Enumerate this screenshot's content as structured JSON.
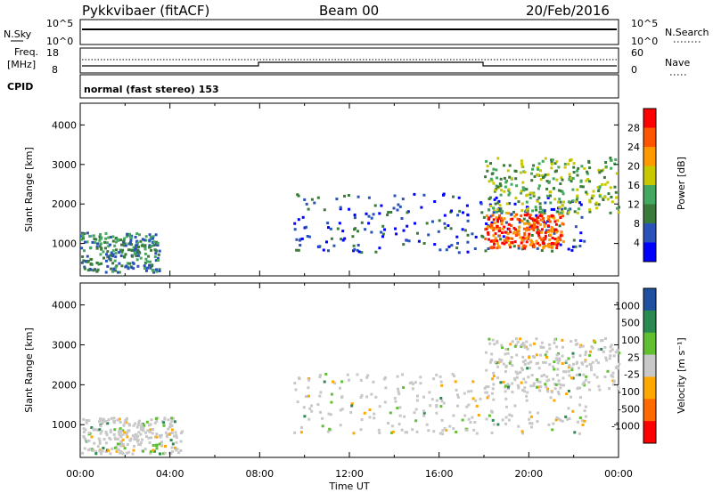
{
  "header": {
    "radar": "Pykkvibaer (fitACF)",
    "beam": "Beam 00",
    "date": "20/Feb/2016"
  },
  "top_panels": {
    "nsky_label": "N.Sky",
    "nsearch_label": "N.Search",
    "nsky_ticks_left": [
      "10^5",
      "10^0"
    ],
    "nsky_ticks_right": [
      "10^5",
      "10^0"
    ],
    "freq_label_line1": "Freq.",
    "freq_label_line2": "[MHz]",
    "freq_ticks": [
      "18",
      "8"
    ],
    "nave_label": "Nave",
    "nave_ticks": [
      "60",
      "0"
    ],
    "cpid_label": "CPID",
    "cpid_text": "normal (fast stereo) 153"
  },
  "x_axis": {
    "label": "Time UT",
    "ticks": [
      "00:00",
      "04:00",
      "08:00",
      "12:00",
      "16:00",
      "20:00",
      "00:00"
    ]
  },
  "colors": {
    "power": [
      "#0000ff",
      "#2a52b8",
      "#3a7a3a",
      "#44a860",
      "#c8c800",
      "#ff9900",
      "#ff5500",
      "#ff0000"
    ],
    "velocity": [
      "#ff0000",
      "#ff6a00",
      "#ffa800",
      "#c8c8c8",
      "#60c030",
      "#2a8a50",
      "#2050a0"
    ]
  },
  "chart_data": [
    {
      "type": "heatmap",
      "title": "",
      "xlabel": "",
      "ylabel": "Slant Range [km]",
      "yticks": [
        "1000",
        "2000",
        "3000",
        "4000"
      ],
      "ylim": [
        180,
        4550
      ],
      "xlim": [
        0,
        24
      ],
      "colorbar_label": "Power [dB]",
      "colorbar_ticks": [
        "4",
        "8",
        "12",
        "16",
        "20",
        "24",
        "28"
      ],
      "features": [
        {
          "name": "early near-range band",
          "t": [
            0.0,
            3.5
          ],
          "range": [
            300,
            1300
          ],
          "level": "low-mid"
        },
        {
          "name": "evening arc",
          "t": [
            9.5,
            22.5
          ],
          "range": [
            800,
            2300
          ],
          "level": "low"
        },
        {
          "name": "intense echo band",
          "t": [
            18.0,
            21.5
          ],
          "range": [
            900,
            1800
          ],
          "level": "high"
        },
        {
          "name": "upper streaks",
          "t": [
            18.0,
            24.0
          ],
          "range": [
            1800,
            3200
          ],
          "level": "mid"
        }
      ]
    },
    {
      "type": "heatmap",
      "title": "",
      "xlabel": "Time UT",
      "ylabel": "Slant Range [km]",
      "yticks": [
        "1000",
        "2000",
        "3000",
        "4000"
      ],
      "ylim": [
        180,
        4550
      ],
      "xlim": [
        0,
        24
      ],
      "colorbar_label": "Velocity [m s⁻¹]",
      "colorbar_ticks": [
        "1000",
        "500",
        "100",
        "25",
        "-25",
        "-100",
        "-500",
        "-1000"
      ],
      "features": [
        {
          "name": "early near-range band",
          "t": [
            0.0,
            4.5
          ],
          "range": [
            300,
            1200
          ],
          "level": "ground"
        },
        {
          "name": "evening arc",
          "t": [
            9.5,
            22.5
          ],
          "range": [
            800,
            2300
          ],
          "level": "ground"
        },
        {
          "name": "upper streaks",
          "t": [
            18.0,
            24.0
          ],
          "range": [
            1800,
            3200
          ],
          "level": "ground"
        }
      ]
    }
  ]
}
